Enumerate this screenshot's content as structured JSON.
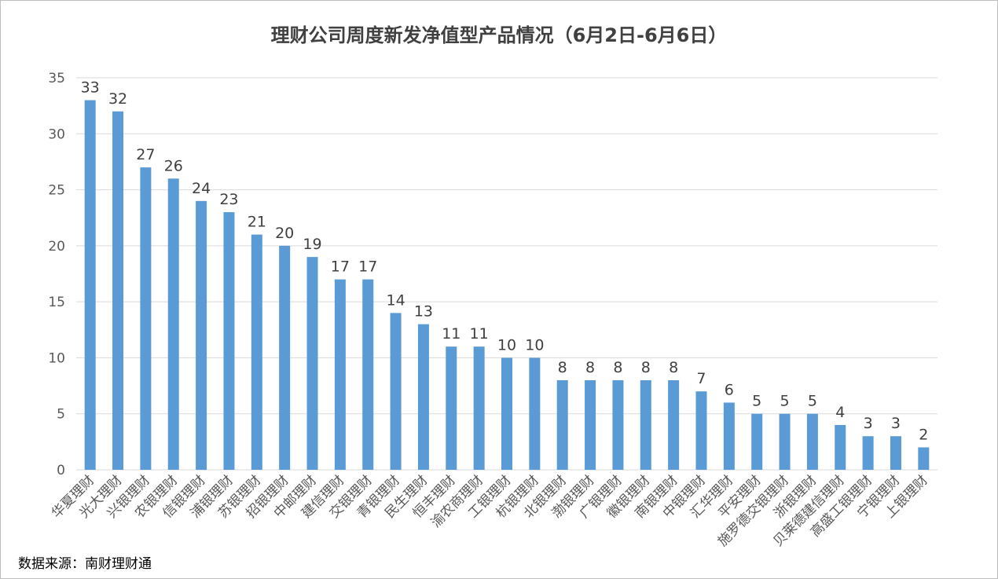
{
  "chart_data": {
    "type": "bar",
    "title": "理财公司周度新发净值型产品情况（6月2日-6月6日）",
    "source": "数据来源：南财理财通",
    "categories": [
      "华夏理财",
      "光大理财",
      "兴银理财",
      "农银理财",
      "信银理财",
      "浦银理财",
      "苏银理财",
      "招银理财",
      "中邮理财",
      "建信理财",
      "交银理财",
      "青银理财",
      "民生理财",
      "恒丰理财",
      "渝农商理财",
      "工银理财",
      "杭银理财",
      "北银理财",
      "渤银理财",
      "广银理财",
      "徽银理财",
      "南银理财",
      "中银理财",
      "汇华理财",
      "平安理财",
      "施罗德交银理财",
      "浙银理财",
      "贝莱德建信理财",
      "高盛工银理财",
      "宁银理财",
      "上银理财"
    ],
    "values": [
      33,
      32,
      27,
      26,
      24,
      23,
      21,
      20,
      19,
      17,
      17,
      14,
      13,
      11,
      11,
      10,
      10,
      8,
      8,
      8,
      8,
      8,
      7,
      6,
      5,
      5,
      5,
      4,
      3,
      3,
      2
    ],
    "ylim": [
      0,
      35
    ],
    "yticks": [
      0,
      5,
      10,
      15,
      20,
      25,
      30,
      35
    ],
    "xlabel": "",
    "ylabel": "",
    "grid": true,
    "bar_color": "#5b9bd5",
    "grid_color": "#d9d9d9"
  }
}
